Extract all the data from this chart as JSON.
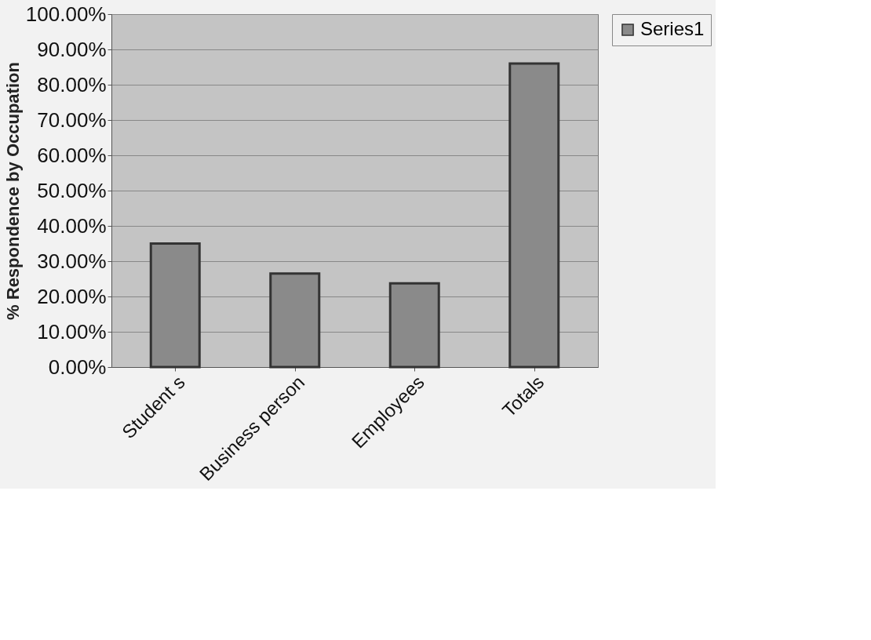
{
  "chart_data": {
    "type": "bar",
    "ylabel": "% Respondence by Occupation",
    "categories": [
      "Student s",
      "Business person",
      "Employees",
      "Totals"
    ],
    "series": [
      {
        "name": "Series1",
        "color": "#8a8a8a",
        "values": [
          35,
          26.5,
          23.7,
          86
        ]
      }
    ],
    "ylim": [
      0,
      100
    ],
    "yticks": [
      {
        "value": 0,
        "label": "0.00%"
      },
      {
        "value": 10,
        "label": "10.00%"
      },
      {
        "value": 20,
        "label": "20.00%"
      },
      {
        "value": 30,
        "label": "30.00%"
      },
      {
        "value": 40,
        "label": "40.00%"
      },
      {
        "value": 50,
        "label": "50.00%"
      },
      {
        "value": 60,
        "label": "60.00%"
      },
      {
        "value": 70,
        "label": "70.00%"
      },
      {
        "value": 80,
        "label": "80.00%"
      },
      {
        "value": 90,
        "label": "90.00%"
      },
      {
        "value": 100,
        "label": "100.00%"
      }
    ],
    "grid": "y",
    "legend": "right"
  }
}
